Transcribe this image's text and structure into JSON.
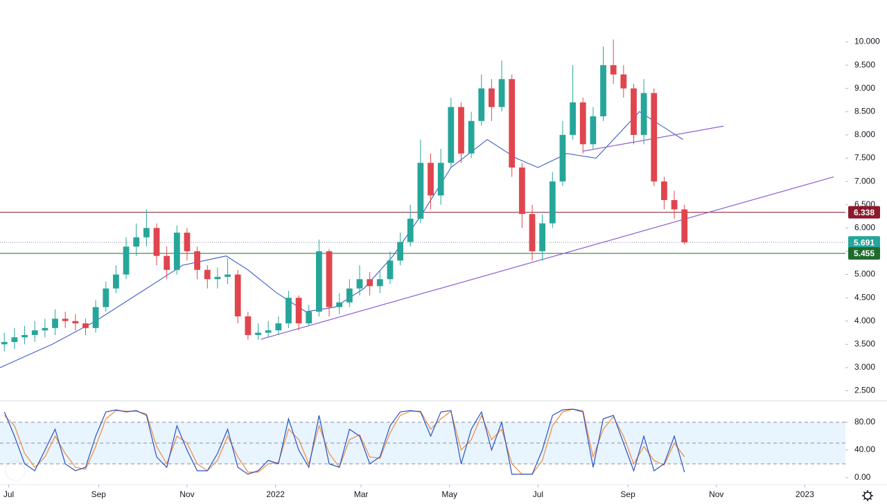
{
  "chart_data": {
    "type": "candlestick",
    "up_color": "#26a69a",
    "down_color": "#e0454e",
    "xlim": [
      -6,
      577
    ],
    "xticks": [
      {
        "value": 0,
        "label": "Jul"
      },
      {
        "value": 62,
        "label": "Sep"
      },
      {
        "value": 123,
        "label": "Nov"
      },
      {
        "value": 184,
        "label": "2022"
      },
      {
        "value": 243,
        "label": "Mar"
      },
      {
        "value": 304,
        "label": "May"
      },
      {
        "value": 365,
        "label": "Jul"
      },
      {
        "value": 427,
        "label": "Sep"
      },
      {
        "value": 488,
        "label": "Nov"
      },
      {
        "value": 549,
        "label": "2023"
      }
    ],
    "ylim": [
      2.3,
      10.9
    ],
    "yticks": [
      {
        "value": 2.5,
        "label": "2.500"
      },
      {
        "value": 3,
        "label": "3.000"
      },
      {
        "value": 3.5,
        "label": "3.500"
      },
      {
        "value": 4,
        "label": "4.000"
      },
      {
        "value": 4.5,
        "label": "4.500"
      },
      {
        "value": 5,
        "label": "5.000"
      },
      {
        "value": 5.5,
        "label": "5.500"
      },
      {
        "value": 6,
        "label": "6.000"
      },
      {
        "value": 6.5,
        "label": "6.500"
      },
      {
        "value": 7,
        "label": "7.000"
      },
      {
        "value": 7.5,
        "label": "7.500"
      },
      {
        "value": 8,
        "label": "8.000"
      },
      {
        "value": 8.5,
        "label": "8.500"
      },
      {
        "value": 9,
        "label": "9.000"
      },
      {
        "value": 9.5,
        "label": "9.500"
      },
      {
        "value": 10,
        "label": "10.000"
      }
    ],
    "x": [
      -3,
      4,
      11,
      18,
      25,
      32,
      39,
      46,
      53,
      60,
      67,
      74,
      81,
      88,
      95,
      102,
      109,
      116,
      123,
      130,
      137,
      144,
      151,
      158,
      165,
      172,
      179,
      186,
      193,
      200,
      207,
      214,
      221,
      228,
      235,
      242,
      249,
      256,
      263,
      270,
      277,
      284,
      291,
      298,
      305,
      312,
      319,
      326,
      333,
      340,
      347,
      354,
      361,
      368,
      375,
      382,
      389,
      396,
      403,
      410,
      417,
      424,
      431,
      438,
      445,
      452,
      459,
      466
    ],
    "open": [
      3.5,
      3.55,
      3.65,
      3.7,
      3.8,
      3.85,
      4.05,
      4.0,
      3.95,
      3.85,
      4.3,
      4.7,
      5.0,
      5.6,
      5.8,
      6.0,
      5.4,
      5.1,
      5.9,
      5.5,
      5.1,
      4.9,
      4.95,
      5.0,
      4.1,
      3.7,
      3.75,
      3.8,
      3.95,
      4.5,
      3.95,
      4.2,
      5.5,
      4.3,
      4.4,
      4.7,
      4.9,
      4.75,
      4.9,
      5.3,
      5.7,
      6.2,
      7.4,
      6.7,
      7.4,
      8.6,
      7.6,
      8.3,
      9.0,
      8.6,
      9.2,
      7.3,
      6.3,
      5.5,
      6.1,
      7.0,
      8.0,
      8.7,
      7.8,
      8.4,
      9.5,
      9.3,
      9.0,
      8.0,
      8.9,
      7.0,
      6.6,
      6.4
    ],
    "high": [
      3.75,
      3.85,
      3.9,
      4.0,
      4.05,
      4.25,
      4.2,
      4.15,
      4.05,
      4.45,
      4.85,
      5.2,
      5.8,
      6.1,
      6.4,
      6.1,
      5.6,
      6.05,
      6.0,
      5.6,
      5.2,
      5.15,
      5.35,
      5.1,
      4.2,
      3.95,
      4.0,
      4.1,
      4.65,
      4.55,
      4.35,
      5.75,
      5.55,
      4.6,
      4.9,
      5.2,
      5.05,
      5.1,
      5.5,
      5.9,
      6.5,
      7.9,
      7.6,
      7.7,
      8.8,
      8.7,
      8.5,
      9.3,
      9.2,
      9.6,
      9.3,
      7.4,
      6.5,
      6.3,
      7.2,
      8.3,
      9.5,
      8.8,
      8.6,
      9.9,
      10.05,
      9.5,
      9.1,
      9.2,
      9.0,
      7.1,
      6.8,
      6.5
    ],
    "low": [
      3.35,
      3.4,
      3.5,
      3.55,
      3.65,
      3.7,
      3.85,
      3.8,
      3.7,
      3.75,
      4.2,
      4.6,
      4.9,
      5.4,
      5.6,
      5.2,
      4.9,
      5.0,
      5.3,
      4.9,
      4.7,
      4.7,
      4.8,
      3.95,
      3.6,
      3.6,
      3.65,
      3.7,
      3.85,
      3.8,
      3.9,
      4.1,
      4.1,
      4.15,
      4.3,
      4.55,
      4.55,
      4.6,
      4.8,
      5.2,
      5.6,
      6.1,
      6.4,
      6.5,
      7.3,
      7.4,
      7.5,
      8.2,
      8.3,
      8.5,
      7.1,
      6.0,
      5.3,
      5.3,
      6.0,
      6.9,
      7.9,
      7.6,
      7.7,
      8.3,
      9.1,
      8.8,
      7.8,
      7.8,
      6.9,
      6.4,
      6.2,
      5.65
    ],
    "close": [
      3.55,
      3.65,
      3.7,
      3.8,
      3.85,
      4.05,
      4.0,
      3.95,
      3.85,
      4.3,
      4.7,
      5.0,
      5.6,
      5.8,
      6.0,
      5.4,
      5.1,
      5.9,
      5.5,
      5.1,
      4.9,
      4.95,
      5.0,
      4.1,
      3.7,
      3.75,
      3.8,
      3.95,
      4.5,
      3.95,
      4.2,
      5.5,
      4.3,
      4.4,
      4.7,
      4.9,
      4.75,
      4.9,
      5.3,
      5.7,
      6.2,
      7.4,
      6.7,
      7.4,
      8.6,
      7.6,
      8.3,
      9.0,
      8.6,
      9.2,
      7.3,
      6.3,
      5.5,
      6.1,
      7.0,
      8.0,
      8.7,
      7.8,
      8.4,
      9.5,
      9.3,
      9.0,
      8.0,
      8.9,
      7.0,
      6.6,
      6.4,
      5.69
    ],
    "ma": {
      "color": "#2a4fc2",
      "x": [
        -6,
        30,
        60,
        90,
        120,
        150,
        165,
        185,
        205,
        225,
        245,
        265,
        285,
        305,
        330,
        350,
        365,
        385,
        405,
        420,
        435,
        450,
        465
      ],
      "values": [
        3.0,
        3.5,
        4.0,
        4.6,
        5.2,
        5.4,
        5.1,
        4.6,
        4.2,
        4.3,
        4.7,
        5.4,
        6.3,
        7.3,
        7.9,
        7.5,
        7.3,
        7.6,
        7.5,
        8.0,
        8.5,
        8.2,
        7.9
      ]
    },
    "trendlines": [
      {
        "color": "#8e5bd6",
        "x": [
          174,
          569
        ],
        "values": [
          3.61,
          7.1
        ]
      },
      {
        "color": "#8e5bd6",
        "x": [
          396,
          493
        ],
        "values": [
          7.65,
          8.19
        ]
      }
    ],
    "levels": [
      {
        "value": 6.338,
        "color": "#8b1a2b",
        "style": "solid"
      },
      {
        "value": 5.691,
        "color": "#26a69a",
        "style": "dotted"
      },
      {
        "value": 5.455,
        "color": "#1e6b2e",
        "style": "solid"
      }
    ],
    "indicator": {
      "ylim": [
        -2,
        110
      ],
      "band": [
        20,
        80
      ],
      "dashed": [
        80,
        50,
        20
      ],
      "yticks": [
        {
          "value": 0,
          "label": "0.00"
        },
        {
          "value": 40,
          "label": "40.00"
        },
        {
          "value": 80,
          "label": "80.00"
        }
      ],
      "series": [
        {
          "color": "#2a4fc2",
          "values": [
            95,
            60,
            20,
            10,
            40,
            70,
            20,
            10,
            15,
            60,
            95,
            98,
            95,
            97,
            90,
            30,
            15,
            75,
            40,
            10,
            10,
            35,
            70,
            15,
            5,
            10,
            25,
            20,
            85,
            40,
            15,
            90,
            20,
            15,
            70,
            60,
            20,
            30,
            75,
            95,
            97,
            95,
            60,
            95,
            97,
            20,
            70,
            95,
            40,
            80,
            5,
            5,
            5,
            40,
            90,
            98,
            99,
            95,
            15,
            85,
            90,
            50,
            10,
            60,
            10,
            20,
            60,
            8
          ]
        },
        {
          "color": "#f08a3c",
          "values": [
            90,
            75,
            35,
            15,
            30,
            60,
            35,
            15,
            12,
            45,
            85,
            97,
            96,
            96,
            92,
            45,
            20,
            60,
            50,
            20,
            10,
            25,
            60,
            30,
            8,
            8,
            20,
            22,
            70,
            55,
            20,
            75,
            35,
            15,
            55,
            62,
            30,
            28,
            65,
            90,
            96,
            96,
            70,
            85,
            96,
            40,
            55,
            90,
            55,
            70,
            20,
            5,
            5,
            25,
            75,
            95,
            99,
            97,
            30,
            70,
            88,
            60,
            20,
            45,
            25,
            18,
            50,
            30
          ]
        }
      ]
    }
  }
}
